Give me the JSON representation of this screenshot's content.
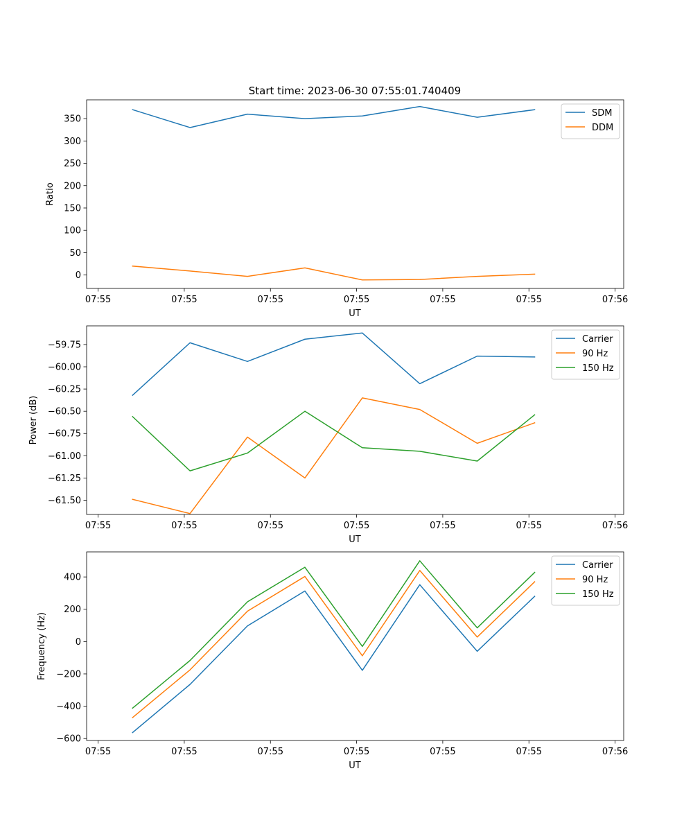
{
  "figure": {
    "title": "Start time: 2023-06-30 07:55:01.740409"
  },
  "colors": {
    "blue": "#1f77b4",
    "orange": "#ff7f0e",
    "green": "#2ca02c"
  },
  "chart_data": [
    {
      "type": "line",
      "ylabel": "Ratio",
      "xlabel": "UT",
      "x": [
        1,
        2,
        3,
        4,
        5,
        6,
        7,
        8
      ],
      "xlim": [
        0.2,
        9.55
      ],
      "xticks": [
        0.4,
        1.9,
        3.4,
        4.9,
        6.4,
        7.9,
        9.4
      ],
      "xticklabels": [
        "07:55",
        "07:55",
        "07:55",
        "07:55",
        "07:55",
        "07:55",
        "07:56"
      ],
      "ylim": [
        -30,
        392
      ],
      "yticks": [
        0,
        50,
        100,
        150,
        200,
        250,
        300,
        350
      ],
      "yticklabels": [
        "0",
        "50",
        "100",
        "150",
        "200",
        "250",
        "300",
        "350"
      ],
      "legend": "top-right",
      "series": [
        {
          "name": "SDM",
          "color": "#1f77b4",
          "values": [
            370,
            330,
            360,
            350,
            356,
            377,
            353,
            370
          ]
        },
        {
          "name": "DDM",
          "color": "#ff7f0e",
          "values": [
            20,
            9,
            -3,
            16,
            -11,
            -10,
            -3,
            2
          ]
        }
      ]
    },
    {
      "type": "line",
      "ylabel": "Power (dB)",
      "xlabel": "UT",
      "x": [
        1,
        2,
        3,
        4,
        5,
        6,
        7,
        8
      ],
      "xlim": [
        0.2,
        9.55
      ],
      "xticks": [
        0.4,
        1.9,
        3.4,
        4.9,
        6.4,
        7.9,
        9.4
      ],
      "xticklabels": [
        "07:55",
        "07:55",
        "07:55",
        "07:55",
        "07:55",
        "07:55",
        "07:56"
      ],
      "ylim": [
        -61.66,
        -59.54
      ],
      "yticks": [
        -61.5,
        -61.25,
        -61.0,
        -60.75,
        -60.5,
        -60.25,
        -60.0,
        -59.75
      ],
      "yticklabels": [
        "−61.50",
        "−61.25",
        "−61.00",
        "−60.75",
        "−60.50",
        "−60.25",
        "−60.00",
        "−59.75"
      ],
      "legend": "top-right",
      "series": [
        {
          "name": "Carrier",
          "color": "#1f77b4",
          "values": [
            -60.32,
            -59.73,
            -59.94,
            -59.69,
            -59.62,
            -60.19,
            -59.88,
            -59.89
          ]
        },
        {
          "name": "90 Hz",
          "color": "#ff7f0e",
          "values": [
            -61.49,
            -61.65,
            -60.79,
            -61.25,
            -60.35,
            -60.48,
            -60.86,
            -60.63
          ]
        },
        {
          "name": "150 Hz",
          "color": "#2ca02c",
          "values": [
            -60.56,
            -61.17,
            -60.97,
            -60.5,
            -60.91,
            -60.95,
            -61.06,
            -60.54
          ]
        }
      ]
    },
    {
      "type": "line",
      "ylabel": "Frequency (Hz)",
      "xlabel": "UT",
      "x": [
        1,
        2,
        3,
        4,
        5,
        6,
        7,
        8
      ],
      "xlim": [
        0.2,
        9.55
      ],
      "xticks": [
        0.4,
        1.9,
        3.4,
        4.9,
        6.4,
        7.9,
        9.4
      ],
      "xticklabels": [
        "07:55",
        "07:55",
        "07:55",
        "07:55",
        "07:55",
        "07:55",
        "07:56"
      ],
      "ylim": [
        -612,
        555
      ],
      "yticks": [
        -600,
        -400,
        -200,
        0,
        200,
        400
      ],
      "yticklabels": [
        "−600",
        "−400",
        "−200",
        "0",
        "200",
        "400"
      ],
      "legend": "top-right",
      "series": [
        {
          "name": "Carrier",
          "color": "#1f77b4",
          "values": [
            -563,
            -265,
            97,
            313,
            -178,
            352,
            -60,
            280
          ]
        },
        {
          "name": "90 Hz",
          "color": "#ff7f0e",
          "values": [
            -470,
            -175,
            188,
            403,
            -88,
            440,
            28,
            370
          ]
        },
        {
          "name": "150 Hz",
          "color": "#2ca02c",
          "values": [
            -412,
            -117,
            246,
            460,
            -30,
            500,
            85,
            428
          ]
        }
      ]
    }
  ]
}
